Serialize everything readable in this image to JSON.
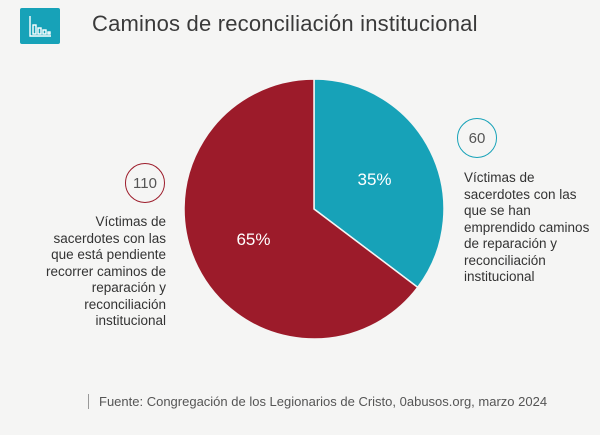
{
  "header": {
    "title": "Caminos de reconciliación institucional",
    "logo_icon": "bar-chart-icon"
  },
  "chart_data": {
    "type": "pie",
    "slices": [
      {
        "label": "Víctimas de sacerdotes con las que se han emprendido caminos de reparación y reconciliación institucional",
        "value": 60,
        "percent": 35,
        "color": "#17a2b8"
      },
      {
        "label": "Víctimas de sacerdotes con las que está pendiente recorrer caminos de reparación y reconciliación institucional",
        "value": 110,
        "percent": 65,
        "color": "#9c1b2a"
      }
    ]
  },
  "annotations": {
    "right_value": "60",
    "right_text": "Víctimas de sacerdotes con las que se han emprendido caminos de reparación y reconciliación institucional",
    "left_value": "110",
    "left_text": "Víctimas de sacerdotes con las que está pendiente recorrer caminos de reparación y reconciliación institucional",
    "right_pct": "35%",
    "left_pct": "65%"
  },
  "footer": {
    "source": "Fuente: Congregación de los Legionarios de Cristo, 0abusos.org, marzo 2024"
  }
}
